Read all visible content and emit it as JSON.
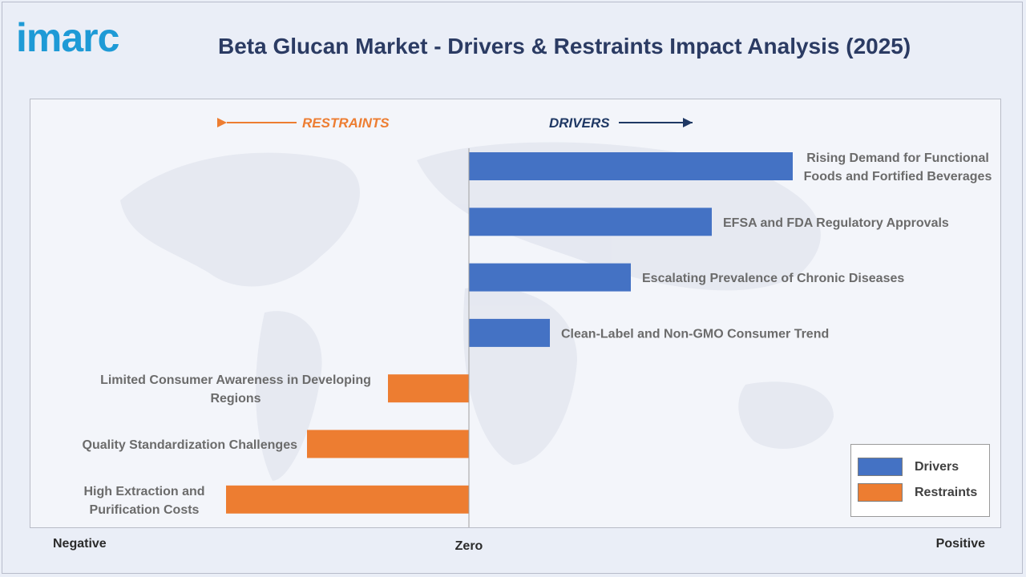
{
  "brand": {
    "logo_text": "imarc"
  },
  "page": {
    "title": "Beta Glucan Market - Drivers & Restraints Impact Analysis (2025)"
  },
  "chart_data": {
    "type": "bar",
    "orientation": "horizontal-diverging",
    "title": "Beta Glucan Market - Drivers & Restraints Impact Analysis (2025)",
    "direction_labels": {
      "left": "RESTRAINTS",
      "right": "DRIVERS"
    },
    "axis_labels": {
      "negative": "Negative",
      "zero": "Zero",
      "positive": "Positive"
    },
    "xlim": [
      -6,
      10
    ],
    "series": [
      {
        "name": "Drivers",
        "color": "#4472c4",
        "items": [
          {
            "label": [
              "Rising Demand for Functional",
              "Foods and Fortified Beverages"
            ],
            "value": 8
          },
          {
            "label": [
              "EFSA and FDA Regulatory Approvals"
            ],
            "value": 6
          },
          {
            "label": [
              "Escalating Prevalence of Chronic Diseases"
            ],
            "value": 4
          },
          {
            "label": [
              "Clean-Label and Non-GMO Consumer Trend"
            ],
            "value": 2
          }
        ]
      },
      {
        "name": "Restraints",
        "color": "#ed7d31",
        "items": [
          {
            "label": [
              "Limited Consumer Awareness in Developing",
              "Regions"
            ],
            "value": -2
          },
          {
            "label": [
              "Quality Standardization Challenges"
            ],
            "value": -4
          },
          {
            "label": [
              "High Extraction and",
              "Purification Costs"
            ],
            "value": -6
          }
        ]
      }
    ],
    "legend": {
      "position": "bottom-right",
      "items": [
        {
          "label": "Drivers",
          "color": "#4472c4"
        },
        {
          "label": "Restraints",
          "color": "#ed7d31"
        }
      ]
    },
    "direction_colors": {
      "restraints": "#ed7d31",
      "drivers": "#1f3864"
    }
  }
}
